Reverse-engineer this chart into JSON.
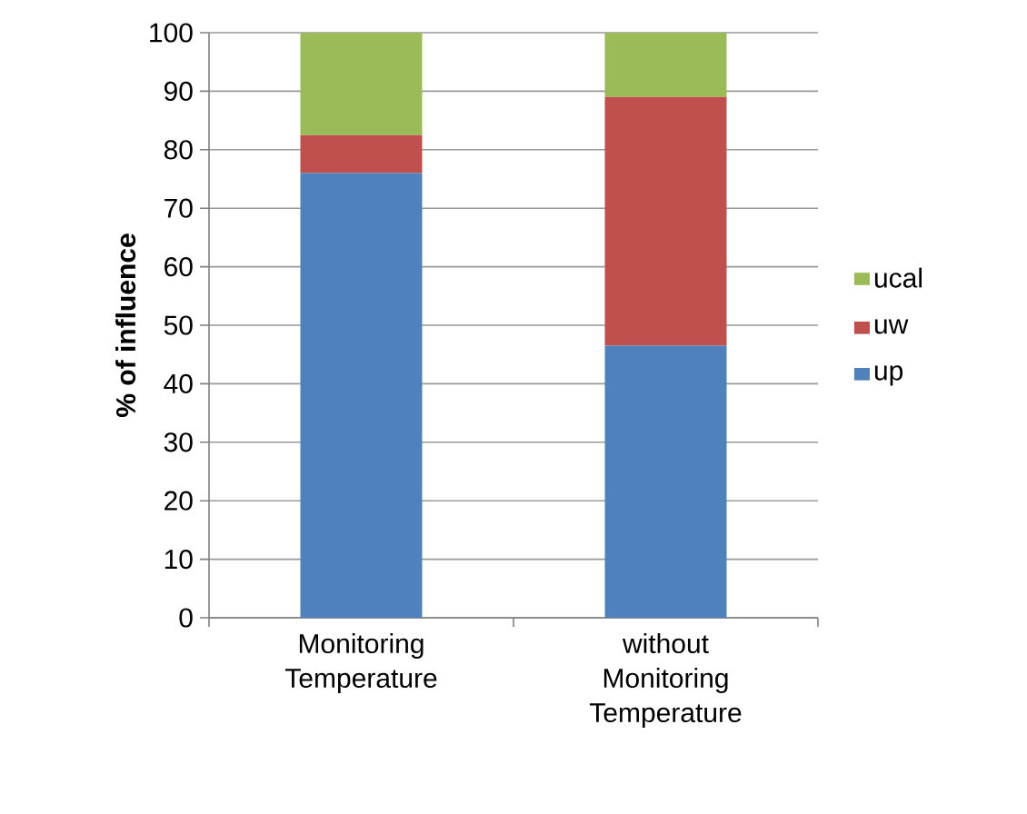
{
  "chart_data": {
    "type": "bar",
    "stacked": true,
    "ylabel": "% of influence",
    "categories": [
      "Monitoring Temperature",
      "without Monitoring Temperature"
    ],
    "series": [
      {
        "name": "up",
        "color": "#4f81bd",
        "values": [
          76,
          46.5
        ]
      },
      {
        "name": "uw",
        "color": "#c0504d",
        "values": [
          6.5,
          42.5
        ]
      },
      {
        "name": "ucal",
        "color": "#9bbb59",
        "values": [
          17.5,
          11
        ]
      }
    ],
    "ylim": [
      0,
      100
    ],
    "yticks": [
      0,
      10,
      20,
      30,
      40,
      50,
      60,
      70,
      80,
      90,
      100
    ],
    "grid": "y",
    "legend": "right"
  }
}
